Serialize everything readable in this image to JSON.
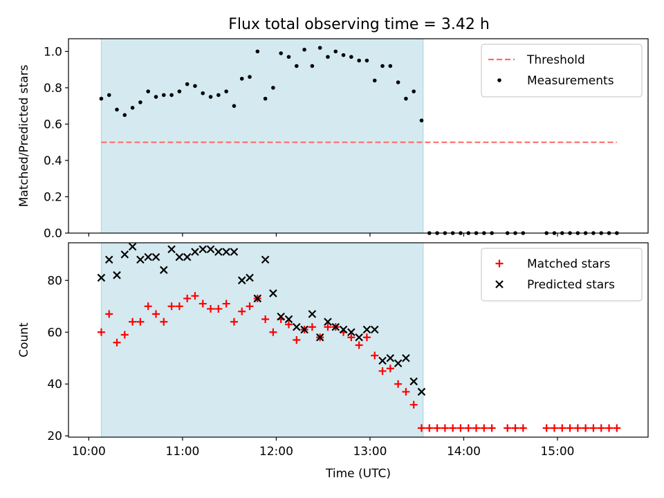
{
  "title": "Flux total observing time = 3.42 h",
  "chart_data": [
    {
      "type": "scatter",
      "ylabel": "Matched/Predicted stars",
      "ylim": [
        0,
        1.07
      ],
      "yticks": [
        "0.0",
        "0.2",
        "0.4",
        "0.6",
        "0.8",
        "1.0"
      ],
      "ytick_values": [
        0.0,
        0.2,
        0.4,
        0.6,
        0.8,
        1.0
      ],
      "legend_position": "upper-right",
      "shaded_interval": [
        "10:08",
        "13:34"
      ],
      "threshold": {
        "name": "Threshold",
        "value": 0.5,
        "x_start": "10:08",
        "x_end": "15:38",
        "color": "#ff6b6b"
      },
      "series": [
        {
          "name": "Measurements",
          "marker": "dot",
          "color": "#000000",
          "x": [
            "10:08",
            "10:13",
            "10:18",
            "10:23",
            "10:28",
            "10:33",
            "10:38",
            "10:43",
            "10:48",
            "10:53",
            "10:58",
            "11:03",
            "11:08",
            "11:13",
            "11:18",
            "11:23",
            "11:28",
            "11:33",
            "11:38",
            "11:43",
            "11:48",
            "11:53",
            "11:58",
            "12:03",
            "12:08",
            "12:13",
            "12:18",
            "12:23",
            "12:28",
            "12:33",
            "12:38",
            "12:43",
            "12:48",
            "12:53",
            "12:58",
            "13:03",
            "13:08",
            "13:13",
            "13:18",
            "13:23",
            "13:28",
            "13:33",
            "13:38",
            "13:43",
            "13:48",
            "13:53",
            "13:58",
            "14:03",
            "14:08",
            "14:13",
            "14:18",
            "14:28",
            "14:33",
            "14:38",
            "14:53",
            "14:58",
            "15:03",
            "15:08",
            "15:13",
            "15:18",
            "15:23",
            "15:28",
            "15:33",
            "15:38"
          ],
          "y": [
            0.74,
            0.76,
            0.68,
            0.65,
            0.69,
            0.72,
            0.78,
            0.75,
            0.76,
            0.76,
            0.78,
            0.82,
            0.81,
            0.77,
            0.75,
            0.76,
            0.78,
            0.7,
            0.85,
            0.86,
            1.0,
            0.74,
            0.8,
            0.99,
            0.97,
            0.92,
            1.01,
            0.92,
            1.02,
            0.97,
            1.0,
            0.98,
            0.97,
            0.95,
            0.95,
            0.84,
            0.92,
            0.92,
            0.83,
            0.74,
            0.78,
            0.62,
            0,
            0,
            0,
            0,
            0,
            0,
            0,
            0,
            0,
            0,
            0,
            0,
            0,
            0,
            0,
            0,
            0,
            0,
            0,
            0,
            0,
            0
          ]
        }
      ]
    },
    {
      "type": "scatter",
      "xlabel": "Time (UTC)",
      "ylabel": "Count",
      "xticks": [
        "10:00",
        "11:00",
        "12:00",
        "13:00",
        "14:00",
        "15:00"
      ],
      "ylim": [
        19.5,
        94.5
      ],
      "yticks": [
        "20",
        "40",
        "60",
        "80"
      ],
      "ytick_values": [
        20,
        40,
        60,
        80
      ],
      "legend_position": "upper-right",
      "shaded_interval": [
        "10:08",
        "13:34"
      ],
      "series": [
        {
          "name": "Matched stars",
          "marker": "plus",
          "color": "#ff0000",
          "x": [
            "10:08",
            "10:13",
            "10:18",
            "10:23",
            "10:28",
            "10:33",
            "10:38",
            "10:43",
            "10:48",
            "10:53",
            "10:58",
            "11:03",
            "11:08",
            "11:13",
            "11:18",
            "11:23",
            "11:28",
            "11:33",
            "11:38",
            "11:43",
            "11:48",
            "11:53",
            "11:58",
            "12:03",
            "12:08",
            "12:13",
            "12:18",
            "12:23",
            "12:28",
            "12:33",
            "12:38",
            "12:43",
            "12:48",
            "12:53",
            "12:58",
            "13:03",
            "13:08",
            "13:13",
            "13:18",
            "13:23",
            "13:28",
            "13:33",
            "13:38",
            "13:43",
            "13:48",
            "13:53",
            "13:58",
            "14:03",
            "14:08",
            "14:13",
            "14:18",
            "14:28",
            "14:33",
            "14:38",
            "14:53",
            "14:58",
            "15:03",
            "15:08",
            "15:13",
            "15:18",
            "15:23",
            "15:28",
            "15:33",
            "15:38"
          ],
          "y": [
            60,
            67,
            56,
            59,
            64,
            64,
            70,
            67,
            64,
            70,
            70,
            73,
            74,
            71,
            69,
            69,
            71,
            64,
            68,
            70,
            73,
            65,
            60,
            65,
            63,
            57,
            61,
            62,
            58,
            62,
            62,
            60,
            58,
            55,
            58,
            51,
            45,
            46,
            40,
            37,
            32,
            23,
            23,
            23,
            23,
            23,
            23,
            23,
            23,
            23,
            23,
            23,
            23,
            23,
            23,
            23,
            23,
            23,
            23,
            23,
            23,
            23,
            23,
            23
          ]
        },
        {
          "name": "Predicted stars",
          "marker": "x",
          "color": "#000000",
          "x": [
            "10:08",
            "10:13",
            "10:18",
            "10:23",
            "10:28",
            "10:33",
            "10:38",
            "10:43",
            "10:48",
            "10:53",
            "10:58",
            "11:03",
            "11:08",
            "11:13",
            "11:18",
            "11:23",
            "11:28",
            "11:33",
            "11:38",
            "11:43",
            "11:48",
            "11:53",
            "11:58",
            "12:03",
            "12:08",
            "12:13",
            "12:18",
            "12:23",
            "12:28",
            "12:33",
            "12:38",
            "12:43",
            "12:48",
            "12:53",
            "12:58",
            "13:03",
            "13:08",
            "13:13",
            "13:18",
            "13:23",
            "13:28",
            "13:33"
          ],
          "y": [
            81,
            88,
            82,
            90,
            93,
            88,
            89,
            89,
            84,
            92,
            89,
            89,
            91,
            92,
            92,
            91,
            91,
            91,
            80,
            81,
            73,
            88,
            75,
            66,
            65,
            62,
            61,
            67,
            58,
            64,
            62,
            61,
            60,
            58,
            61,
            61,
            49,
            50,
            48,
            50,
            41,
            37
          ]
        }
      ]
    }
  ]
}
